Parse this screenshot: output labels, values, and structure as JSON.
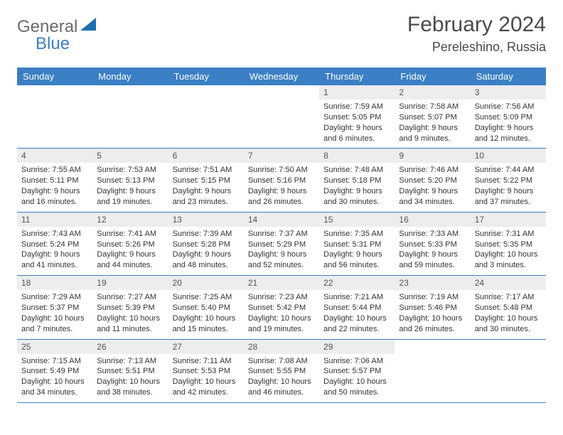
{
  "logo": {
    "text1": "General",
    "text2": "Blue"
  },
  "title": "February 2024",
  "location": "Pereleshino, Russia",
  "colors": {
    "accent": "#3b7fc4",
    "daynum_bg": "#ededed",
    "text": "#333333"
  },
  "weekdays": [
    "Sunday",
    "Monday",
    "Tuesday",
    "Wednesday",
    "Thursday",
    "Friday",
    "Saturday"
  ],
  "labels": {
    "sunrise": "Sunrise:",
    "sunset": "Sunset:",
    "daylight": "Daylight:"
  },
  "weeks": [
    [
      null,
      null,
      null,
      null,
      {
        "d": "1",
        "sr": "7:59 AM",
        "ss": "5:05 PM",
        "dl": "9 hours and 6 minutes."
      },
      {
        "d": "2",
        "sr": "7:58 AM",
        "ss": "5:07 PM",
        "dl": "9 hours and 9 minutes."
      },
      {
        "d": "3",
        "sr": "7:56 AM",
        "ss": "5:09 PM",
        "dl": "9 hours and 12 minutes."
      }
    ],
    [
      {
        "d": "4",
        "sr": "7:55 AM",
        "ss": "5:11 PM",
        "dl": "9 hours and 16 minutes."
      },
      {
        "d": "5",
        "sr": "7:53 AM",
        "ss": "5:13 PM",
        "dl": "9 hours and 19 minutes."
      },
      {
        "d": "6",
        "sr": "7:51 AM",
        "ss": "5:15 PM",
        "dl": "9 hours and 23 minutes."
      },
      {
        "d": "7",
        "sr": "7:50 AM",
        "ss": "5:16 PM",
        "dl": "9 hours and 26 minutes."
      },
      {
        "d": "8",
        "sr": "7:48 AM",
        "ss": "5:18 PM",
        "dl": "9 hours and 30 minutes."
      },
      {
        "d": "9",
        "sr": "7:46 AM",
        "ss": "5:20 PM",
        "dl": "9 hours and 34 minutes."
      },
      {
        "d": "10",
        "sr": "7:44 AM",
        "ss": "5:22 PM",
        "dl": "9 hours and 37 minutes."
      }
    ],
    [
      {
        "d": "11",
        "sr": "7:43 AM",
        "ss": "5:24 PM",
        "dl": "9 hours and 41 minutes."
      },
      {
        "d": "12",
        "sr": "7:41 AM",
        "ss": "5:26 PM",
        "dl": "9 hours and 44 minutes."
      },
      {
        "d": "13",
        "sr": "7:39 AM",
        "ss": "5:28 PM",
        "dl": "9 hours and 48 minutes."
      },
      {
        "d": "14",
        "sr": "7:37 AM",
        "ss": "5:29 PM",
        "dl": "9 hours and 52 minutes."
      },
      {
        "d": "15",
        "sr": "7:35 AM",
        "ss": "5:31 PM",
        "dl": "9 hours and 56 minutes."
      },
      {
        "d": "16",
        "sr": "7:33 AM",
        "ss": "5:33 PM",
        "dl": "9 hours and 59 minutes."
      },
      {
        "d": "17",
        "sr": "7:31 AM",
        "ss": "5:35 PM",
        "dl": "10 hours and 3 minutes."
      }
    ],
    [
      {
        "d": "18",
        "sr": "7:29 AM",
        "ss": "5:37 PM",
        "dl": "10 hours and 7 minutes."
      },
      {
        "d": "19",
        "sr": "7:27 AM",
        "ss": "5:39 PM",
        "dl": "10 hours and 11 minutes."
      },
      {
        "d": "20",
        "sr": "7:25 AM",
        "ss": "5:40 PM",
        "dl": "10 hours and 15 minutes."
      },
      {
        "d": "21",
        "sr": "7:23 AM",
        "ss": "5:42 PM",
        "dl": "10 hours and 19 minutes."
      },
      {
        "d": "22",
        "sr": "7:21 AM",
        "ss": "5:44 PM",
        "dl": "10 hours and 22 minutes."
      },
      {
        "d": "23",
        "sr": "7:19 AM",
        "ss": "5:46 PM",
        "dl": "10 hours and 26 minutes."
      },
      {
        "d": "24",
        "sr": "7:17 AM",
        "ss": "5:48 PM",
        "dl": "10 hours and 30 minutes."
      }
    ],
    [
      {
        "d": "25",
        "sr": "7:15 AM",
        "ss": "5:49 PM",
        "dl": "10 hours and 34 minutes."
      },
      {
        "d": "26",
        "sr": "7:13 AM",
        "ss": "5:51 PM",
        "dl": "10 hours and 38 minutes."
      },
      {
        "d": "27",
        "sr": "7:11 AM",
        "ss": "5:53 PM",
        "dl": "10 hours and 42 minutes."
      },
      {
        "d": "28",
        "sr": "7:08 AM",
        "ss": "5:55 PM",
        "dl": "10 hours and 46 minutes."
      },
      {
        "d": "29",
        "sr": "7:06 AM",
        "ss": "5:57 PM",
        "dl": "10 hours and 50 minutes."
      },
      null,
      null
    ]
  ]
}
